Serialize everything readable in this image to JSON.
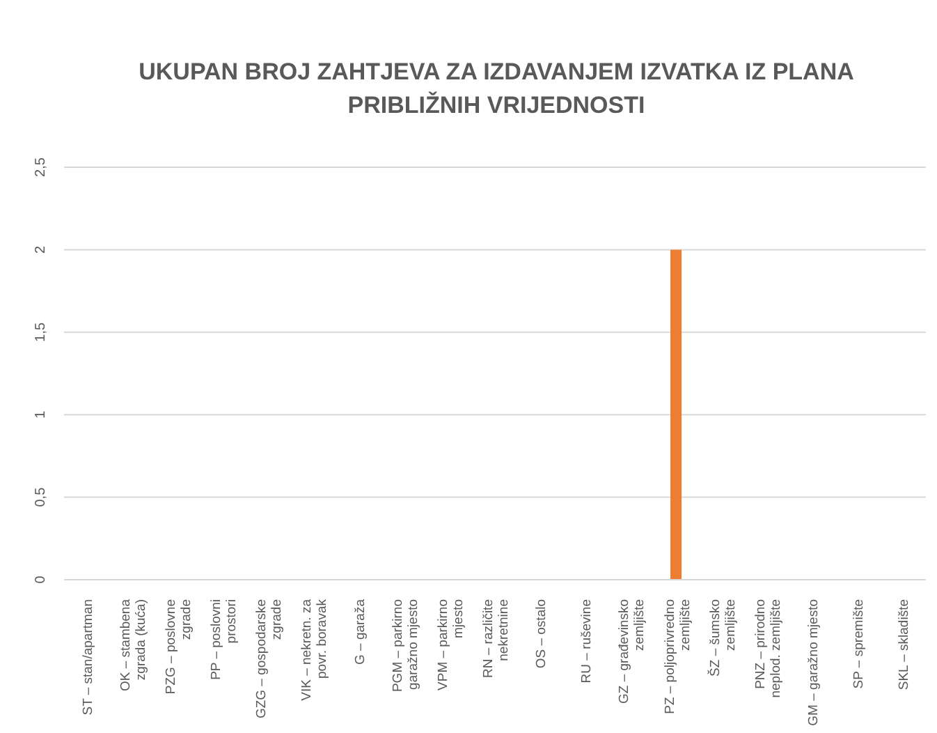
{
  "chart_data": {
    "type": "bar",
    "title": "UKUPAN BROJ ZAHTJEVA ZA IZDAVANJEM IZVATKA IZ PLANA PRIBLIŽNIH VRIJEDNOSTI",
    "categories": [
      "ST – stan/apartman",
      "OK – stambena zgrada (kuća)",
      "PZG – poslovne zgrade",
      "PP – poslovni prostori",
      "GZG – gospodarske zgrade",
      "VIK – nekretn. za povr. boravak",
      "G – garaža",
      "PGM – parkirno garažno mjesto",
      "VPM – parkirno mjesto",
      "RN – različite nekretnine",
      "OS – ostalo",
      "RU – ruševine",
      "GZ – građevinsko zemljište",
      "PZ – poljoprivredno zemljište",
      "ŠZ – šumsko zemljište",
      "PNZ – prirodno neplod. zemljište",
      "GM – garažno mjesto",
      "SP – spremište",
      "SKL – skladište"
    ],
    "values": [
      0,
      0,
      0,
      0,
      0,
      0,
      0,
      0,
      0,
      0,
      0,
      0,
      0,
      2,
      0,
      0,
      0,
      0,
      0
    ],
    "color": "#ed7d31",
    "ylim": [
      0,
      2.5
    ],
    "yticks": [
      0,
      {
        "value": 0.5,
        "label": "0,5"
      },
      1,
      {
        "value": 1.5,
        "label": "1,5"
      },
      2,
      {
        "value": 2.5,
        "label": "2,5"
      }
    ],
    "grid": "y"
  }
}
